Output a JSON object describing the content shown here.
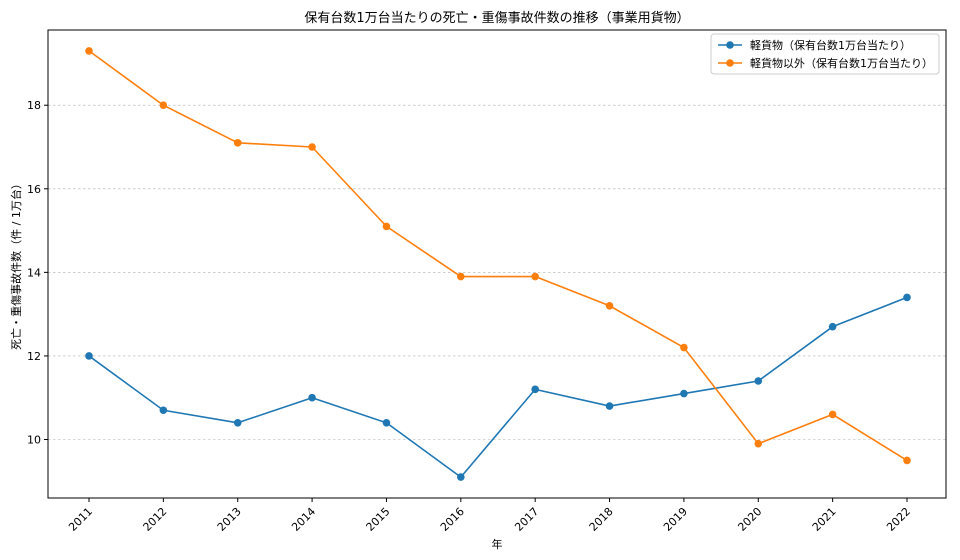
{
  "chart_data": {
    "type": "line",
    "title": "保有台数1万台当たりの死亡・重傷事故件数の推移（事業用貨物）",
    "xlabel": "年",
    "ylabel": "死亡・重傷事故件数（件 / 1万台）",
    "categories": [
      "2011",
      "2012",
      "2013",
      "2014",
      "2015",
      "2016",
      "2017",
      "2018",
      "2019",
      "2020",
      "2021",
      "2022"
    ],
    "yticks": [
      10,
      12,
      14,
      16,
      18
    ],
    "ylim": [
      8.6,
      19.8
    ],
    "grid": "horizontal dashed",
    "legend_position": "top-right",
    "series": [
      {
        "name": "軽貨物（保有台数1万台当たり）",
        "color": "#1f77b4",
        "values": [
          12.0,
          10.7,
          10.4,
          11.0,
          10.4,
          9.1,
          11.2,
          10.8,
          11.1,
          11.4,
          12.7,
          13.4
        ]
      },
      {
        "name": "軽貨物以外（保有台数1万台当たり）",
        "color": "#ff7f0e",
        "values": [
          19.3,
          18.0,
          17.1,
          17.0,
          15.1,
          13.9,
          13.9,
          13.2,
          12.2,
          9.9,
          10.6,
          9.5
        ]
      }
    ]
  }
}
